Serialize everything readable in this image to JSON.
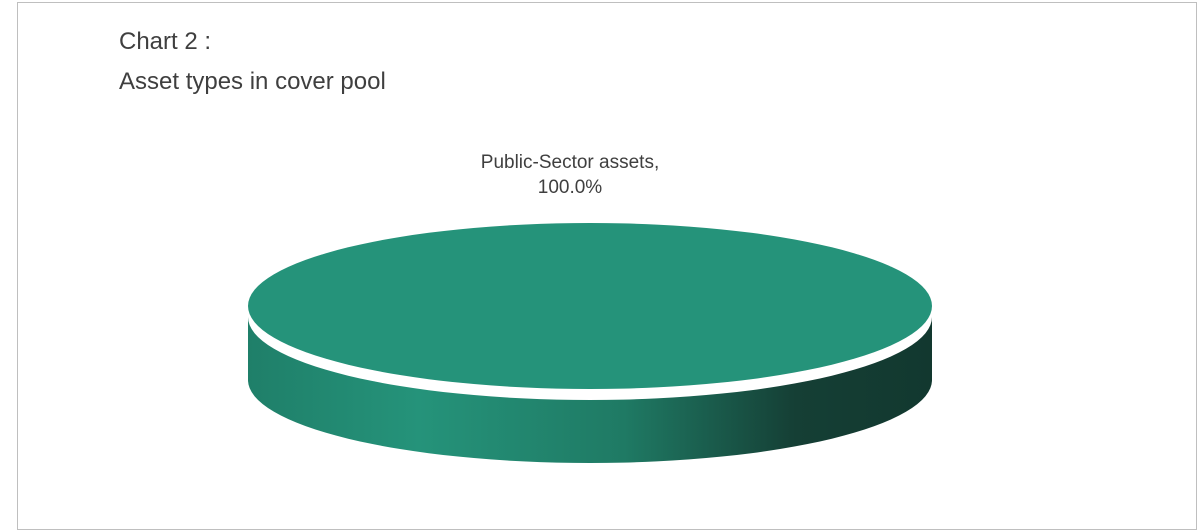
{
  "chart_data": {
    "type": "pie",
    "title_line1": "Chart 2 :",
    "title_line2": "Asset types in cover pool",
    "categories": [
      "Public-Sector assets"
    ],
    "values": [
      100.0
    ],
    "data_labels": [
      {
        "line1": "Public-Sector assets,",
        "line2": "100.0%"
      }
    ],
    "colors": {
      "slice_top": "#25937a",
      "slice_side_dark": "#12382f",
      "frame_border": "#bfbfbf",
      "text": "#3f3f3f"
    },
    "style": "3d"
  }
}
